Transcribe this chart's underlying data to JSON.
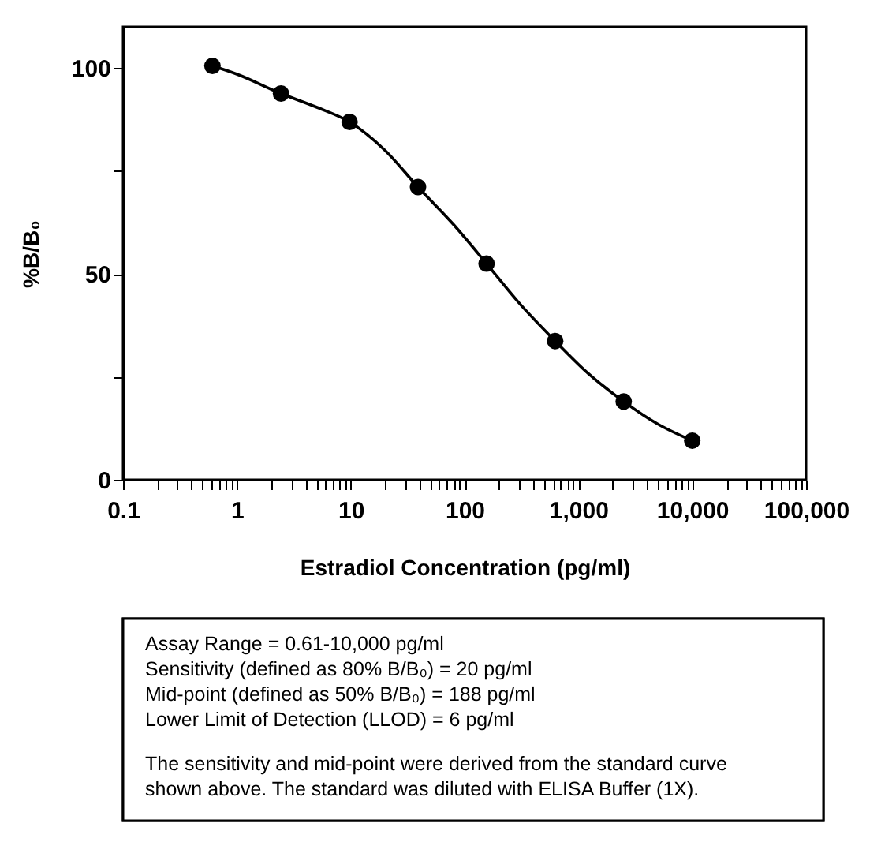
{
  "chart_data": {
    "type": "scatter",
    "xlabel": "Estradiol Concentration (pg/ml)",
    "ylabel": "%B/B₀",
    "x": [
      0.61,
      2.44,
      9.77,
      39,
      156,
      625,
      2500,
      10000
    ],
    "series": [
      {
        "color": "#000000",
        "marker": "circle",
        "values": [
          100.5,
          93.8,
          86.9,
          71.1,
          52.5,
          33.7,
          19.0,
          9.5
        ]
      },
      {
        "type": "line",
        "color": "#000000",
        "line_style": "solid",
        "x": [
          0.61,
          1,
          2.44,
          5,
          9.77,
          20,
          39,
          80,
          156,
          300,
          625,
          1200,
          2500,
          5000,
          10000
        ],
        "values": [
          100.5,
          98.5,
          93.8,
          90.5,
          86.9,
          80,
          71.1,
          62,
          52.5,
          43,
          33.7,
          26,
          19.0,
          13.5,
          9.5
        ]
      }
    ],
    "log": "x",
    "xlim": [
      0.1,
      100000
    ],
    "xticks": [
      0.1,
      {
        "value": 0.2,
        "label": null
      },
      {
        "value": 0.3,
        "label": null
      },
      {
        "value": 0.4,
        "label": null
      },
      {
        "value": 0.5,
        "label": null
      },
      {
        "value": 0.6,
        "label": null
      },
      {
        "value": 0.7,
        "label": null
      },
      {
        "value": 0.8,
        "label": null
      },
      {
        "value": 0.9,
        "label": null
      },
      1,
      {
        "value": 2,
        "label": null
      },
      {
        "value": 3,
        "label": null
      },
      {
        "value": 4,
        "label": null
      },
      {
        "value": 5,
        "label": null
      },
      {
        "value": 6,
        "label": null
      },
      {
        "value": 7,
        "label": null
      },
      {
        "value": 8,
        "label": null
      },
      {
        "value": 9,
        "label": null
      },
      10,
      {
        "value": 20,
        "label": null
      },
      {
        "value": 30,
        "label": null
      },
      {
        "value": 40,
        "label": null
      },
      {
        "value": 50,
        "label": null
      },
      {
        "value": 60,
        "label": null
      },
      {
        "value": 70,
        "label": null
      },
      {
        "value": 80,
        "label": null
      },
      {
        "value": 90,
        "label": null
      },
      100,
      {
        "value": 200,
        "label": null
      },
      {
        "value": 300,
        "label": null
      },
      {
        "value": 400,
        "label": null
      },
      {
        "value": 500,
        "label": null
      },
      {
        "value": 600,
        "label": null
      },
      {
        "value": 700,
        "label": null
      },
      {
        "value": 800,
        "label": null
      },
      {
        "value": 900,
        "label": null
      },
      {
        "value": 1000,
        "label": "1,000"
      },
      {
        "value": 2000,
        "label": null
      },
      {
        "value": 3000,
        "label": null
      },
      {
        "value": 4000,
        "label": null
      },
      {
        "value": 5000,
        "label": null
      },
      {
        "value": 6000,
        "label": null
      },
      {
        "value": 7000,
        "label": null
      },
      {
        "value": 8000,
        "label": null
      },
      {
        "value": 9000,
        "label": null
      },
      {
        "value": 10000,
        "label": "10,000"
      },
      {
        "value": 20000,
        "label": null
      },
      {
        "value": 30000,
        "label": null
      },
      {
        "value": 40000,
        "label": null
      },
      {
        "value": 50000,
        "label": null
      },
      {
        "value": 60000,
        "label": null
      },
      {
        "value": 70000,
        "label": null
      },
      {
        "value": 80000,
        "label": null
      },
      {
        "value": 90000,
        "label": null
      },
      {
        "value": 100000,
        "label": "100,000"
      }
    ],
    "ylim": [
      0,
      110
    ],
    "yticks": [
      0,
      {
        "value": 25,
        "label": null
      },
      50,
      {
        "value": 75,
        "label": null
      },
      100
    ],
    "grid": false,
    "annotations": [
      "Assay Range = 0.61-10,000 pg/ml",
      "Sensitivity (defined as 80% B/B₀) =  20 pg/ml",
      "Mid-point (defined as 50% B/B₀) =  188 pg/ml",
      "Lower Limit of Detection (LLOD) =  6 pg/ml",
      "The sensitivity and mid-point were derived from the standard curve",
      "shown above. The standard was diluted with ELISA Buffer (1X)."
    ]
  }
}
